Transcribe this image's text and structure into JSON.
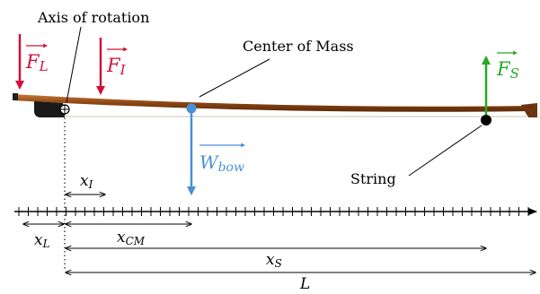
{
  "labels": {
    "axis_of_rotation": "Axis of rotation",
    "center_of_mass": "Center of Mass",
    "string": "String"
  },
  "forces": {
    "fl": {
      "main": "F",
      "sub": "L"
    },
    "fi": {
      "main": "F",
      "sub": "I"
    },
    "fs": {
      "main": "F",
      "sub": "S"
    },
    "wbow": {
      "main": "W",
      "sub": "bow"
    }
  },
  "distances": {
    "xi": {
      "main": "x",
      "sub": "I"
    },
    "xl": {
      "main": "x",
      "sub": "L"
    },
    "xcm": {
      "main": "x",
      "sub": "CM"
    },
    "xs": {
      "main": "x",
      "sub": "S"
    },
    "length": "L"
  },
  "colors": {
    "lever_force": "#d0103a",
    "string_force": "#22aa22",
    "weight": "#4a90d9",
    "bow_stick": "#8b4513",
    "ink": "#000000"
  }
}
